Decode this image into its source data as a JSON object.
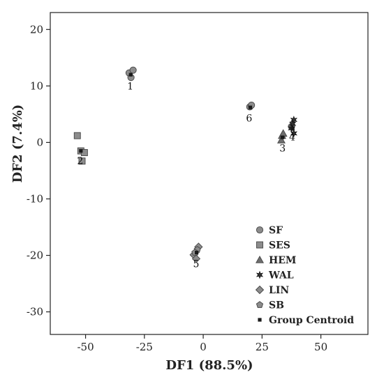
{
  "chart_data": {
    "type": "scatter",
    "title": "",
    "xlabel": "DF1 (88.5%)",
    "ylabel": "DF2 (7.4%)",
    "xlim": [
      -65,
      70
    ],
    "ylim": [
      -34,
      23
    ],
    "xticks": [
      -50,
      -25,
      0,
      25,
      50
    ],
    "yticks": [
      20,
      10,
      0,
      -10,
      -20,
      -30
    ],
    "tick_labels_x": [
      "-50",
      "-25",
      "0",
      "25",
      "50"
    ],
    "tick_labels_y": [
      "20",
      "10",
      "0",
      "-10",
      "-20",
      "-30"
    ],
    "grid": false,
    "legend_position": "bottom-right",
    "series": [
      {
        "name": "SF",
        "marker": "circle",
        "color": "#8c8c8c",
        "points": [
          [
            -31.5,
            12.3
          ],
          [
            -29.8,
            12.8
          ],
          [
            -30.7,
            11.5
          ],
          [
            19.8,
            6.3
          ],
          [
            20.5,
            6.6
          ],
          [
            37.5,
            2.8
          ]
        ]
      },
      {
        "name": "SES",
        "marker": "square",
        "color": "#8c8c8c",
        "points": [
          [
            -53.5,
            1.2
          ],
          [
            -52.0,
            -1.5
          ],
          [
            -50.5,
            -1.8
          ],
          [
            -51.5,
            -3.3
          ]
        ]
      },
      {
        "name": "HEM",
        "marker": "triangle",
        "color": "#6e6e6e",
        "points": [
          [
            33.5,
            1.2
          ],
          [
            34.0,
            1.6
          ],
          [
            33.2,
            0.4
          ]
        ]
      },
      {
        "name": "WAL",
        "marker": "star",
        "color": "#333333",
        "points": [
          [
            38.5,
            4.0
          ],
          [
            38.0,
            3.3
          ],
          [
            37.5,
            2.5
          ],
          [
            38.5,
            1.6
          ]
        ]
      },
      {
        "name": "LIN",
        "marker": "diamond",
        "color": "#8c8c8c",
        "points": [
          [
            -2.0,
            -18.5
          ],
          [
            -4.0,
            -19.9
          ],
          [
            -3.0,
            -20.6
          ]
        ]
      },
      {
        "name": "SB",
        "marker": "pentagon",
        "color": "#8c8c8c",
        "points": [
          [
            -2.5,
            -19.0
          ],
          [
            -3.5,
            -19.5
          ]
        ]
      },
      {
        "name": "Group Centroid",
        "marker": "centroid",
        "color": "#1a1a1a",
        "points": [
          [
            -30.8,
            12.0
          ],
          [
            -52.0,
            -1.5
          ],
          [
            33.7,
            0.9
          ],
          [
            38.0,
            2.4
          ],
          [
            -2.8,
            -19.5
          ],
          [
            20.0,
            6.2
          ]
        ]
      }
    ],
    "group_labels": [
      {
        "text": "1",
        "x": -31.0,
        "y": 10.0
      },
      {
        "text": "2",
        "x": -52.3,
        "y": -3.2
      },
      {
        "text": "3",
        "x": 33.7,
        "y": -1.0
      },
      {
        "text": "4",
        "x": 37.8,
        "y": 1.0
      },
      {
        "text": "5",
        "x": -3.0,
        "y": -21.5
      },
      {
        "text": "6",
        "x": 19.5,
        "y": 4.3
      }
    ]
  }
}
